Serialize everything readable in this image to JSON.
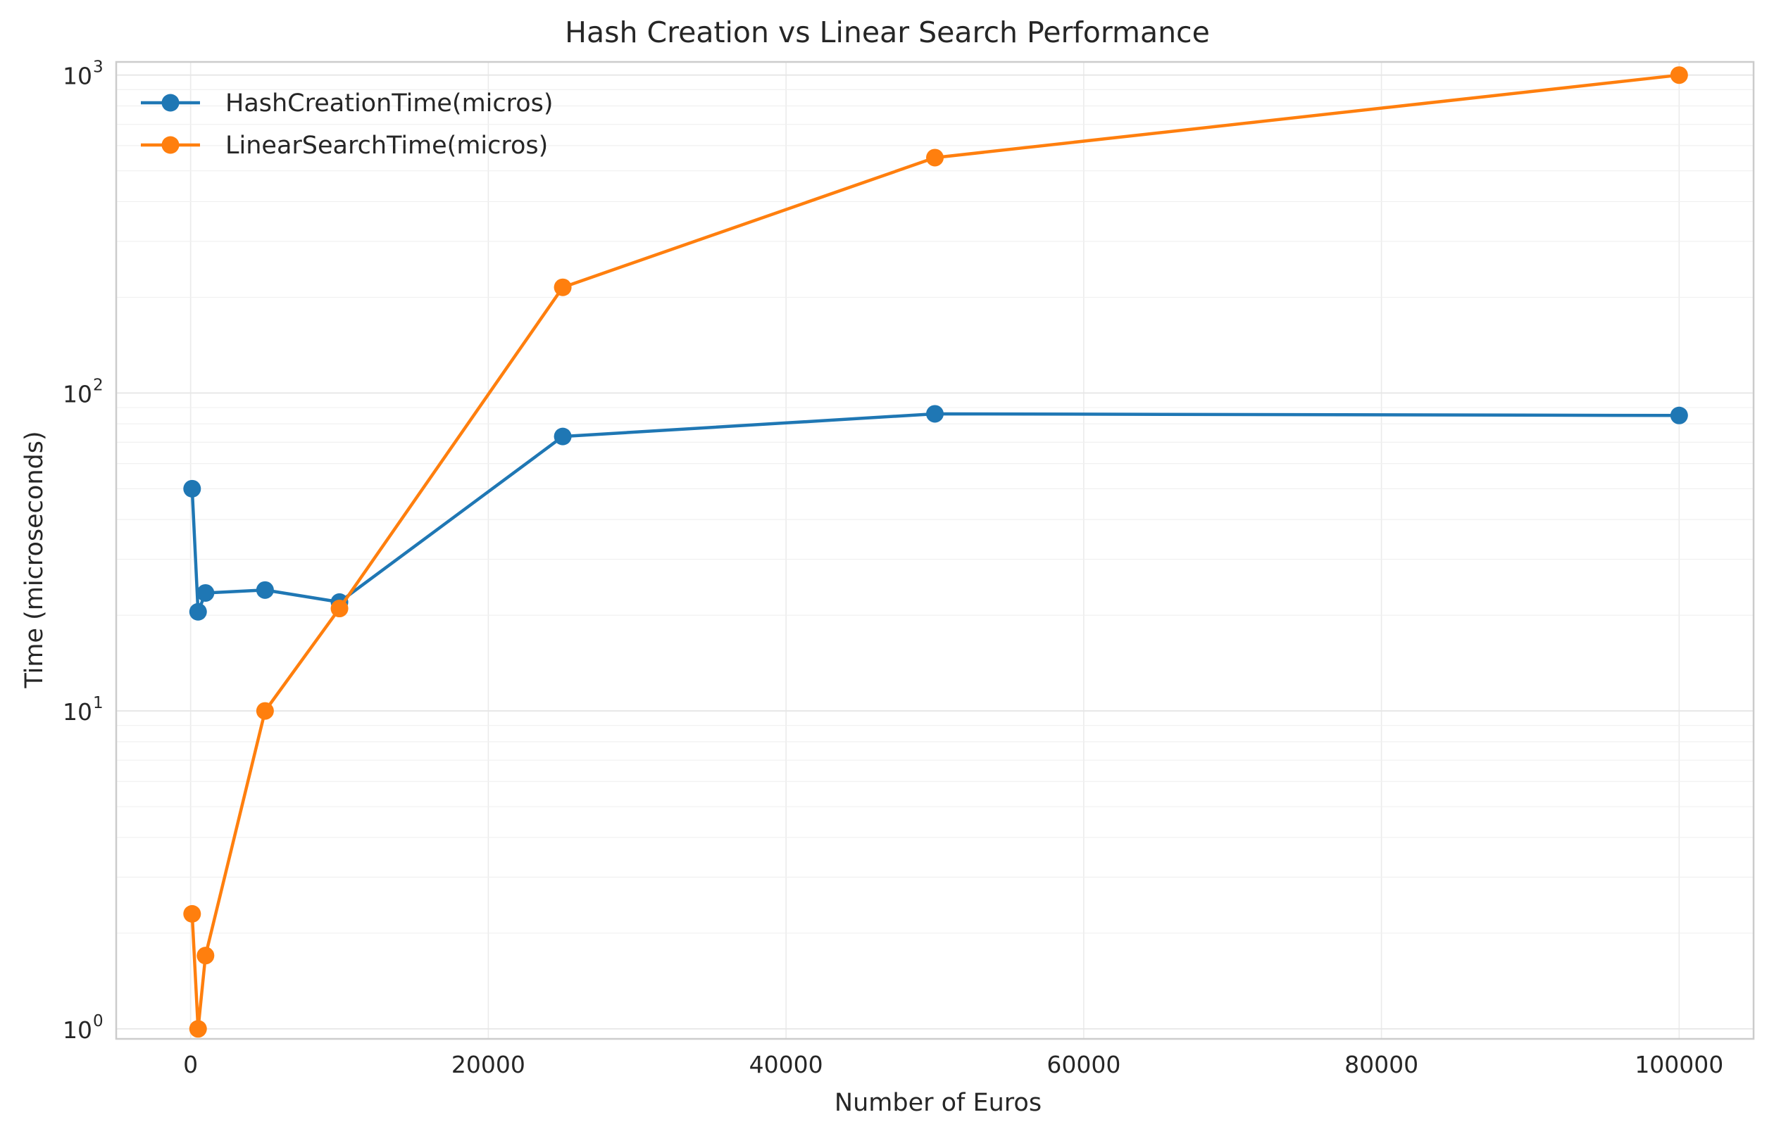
{
  "chart_data": {
    "type": "line",
    "title": "Hash Creation vs Linear Search Performance",
    "xlabel": "Number of Euros",
    "ylabel": "Time (microseconds)",
    "xlim": [
      -5000,
      105000
    ],
    "ylim": [
      0.93,
      1100
    ],
    "y_scale": "log",
    "grid": true,
    "legend_position": "top-left",
    "x_ticks": [
      0,
      20000,
      40000,
      60000,
      80000,
      100000
    ],
    "x_tick_labels": [
      "0",
      "20000",
      "40000",
      "60000",
      "80000",
      "100000"
    ],
    "y_ticks": [
      1,
      10,
      100,
      1000
    ],
    "y_tick_base": "10",
    "y_tick_exponents": [
      "0",
      "1",
      "2",
      "3"
    ],
    "series": [
      {
        "name": "HashCreationTime(micros)",
        "color": "#1f77b4",
        "x": [
          100,
          500,
          1000,
          5000,
          10000,
          25000,
          50000,
          100000
        ],
        "y": [
          50,
          20.5,
          23.5,
          24,
          22,
          73,
          86,
          85
        ]
      },
      {
        "name": "LinearSearchTime(micros)",
        "color": "#ff7f0e",
        "x": [
          100,
          500,
          1000,
          5000,
          10000,
          25000,
          50000,
          100000
        ],
        "y": [
          2.3,
          1.0,
          1.7,
          10,
          21,
          215,
          550,
          1000
        ]
      }
    ]
  }
}
